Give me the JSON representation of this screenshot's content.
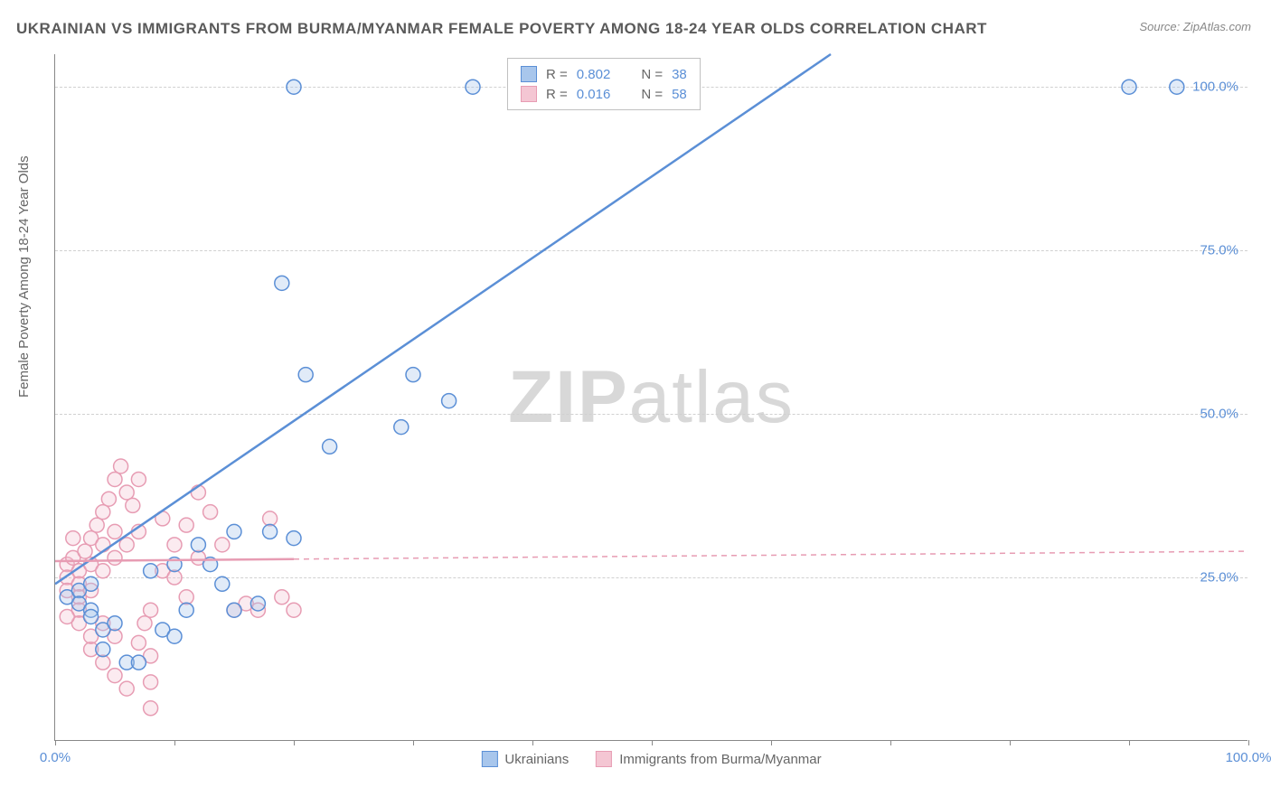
{
  "title": "UKRAINIAN VS IMMIGRANTS FROM BURMA/MYANMAR FEMALE POVERTY AMONG 18-24 YEAR OLDS CORRELATION CHART",
  "source": "Source: ZipAtlas.com",
  "y_axis_label": "Female Poverty Among 18-24 Year Olds",
  "watermark_bold": "ZIP",
  "watermark_light": "atlas",
  "chart": {
    "type": "scatter",
    "xlim": [
      0,
      100
    ],
    "ylim": [
      0,
      105
    ],
    "background_color": "#ffffff",
    "grid_color": "#d0d0d0",
    "grid_dash": "4 4",
    "x_ticks": [
      0,
      10,
      20,
      30,
      40,
      50,
      60,
      70,
      80,
      90,
      100
    ],
    "x_tick_labels": {
      "0": "0.0%",
      "100": "100.0%"
    },
    "y_ticks": [
      25,
      50,
      75,
      100
    ],
    "y_tick_labels": {
      "25": "25.0%",
      "50": "50.0%",
      "75": "75.0%",
      "100": "100.0%"
    },
    "tick_fontsize": 15,
    "tick_color": "#5b8fd6",
    "axis_label_fontsize": 15,
    "axis_label_color": "#666666",
    "marker_radius": 8,
    "marker_stroke_width": 1.5,
    "marker_fill_opacity": 0.35,
    "regression_line_width": 2.5,
    "series": [
      {
        "name": "Ukrainians",
        "color_stroke": "#5b8fd6",
        "color_fill": "#a8c6ec",
        "R": "0.802",
        "N": "38",
        "regression": {
          "x1": 0,
          "y1": 24,
          "x2": 65,
          "y2": 105,
          "dash": null,
          "solid_until_x": 65
        },
        "points": [
          [
            1,
            22
          ],
          [
            2,
            23
          ],
          [
            2,
            21
          ],
          [
            3,
            20
          ],
          [
            3,
            24
          ],
          [
            4,
            17
          ],
          [
            5,
            18
          ],
          [
            4,
            14
          ],
          [
            6,
            12
          ],
          [
            7,
            12
          ],
          [
            9,
            17
          ],
          [
            10,
            16
          ],
          [
            11,
            20
          ],
          [
            10,
            27
          ],
          [
            12,
            30
          ],
          [
            13,
            27
          ],
          [
            15,
            32
          ],
          [
            15,
            20
          ],
          [
            17,
            21
          ],
          [
            18,
            32
          ],
          [
            20,
            31
          ],
          [
            19,
            70
          ],
          [
            21,
            56
          ],
          [
            23,
            45
          ],
          [
            29,
            48
          ],
          [
            30,
            56
          ],
          [
            33,
            52
          ],
          [
            20,
            100
          ],
          [
            35,
            100
          ],
          [
            40,
            100
          ],
          [
            47,
            100
          ],
          [
            48,
            100
          ],
          [
            50,
            100
          ],
          [
            90,
            100
          ],
          [
            94,
            100
          ],
          [
            14,
            24
          ],
          [
            8,
            26
          ],
          [
            3,
            19
          ]
        ]
      },
      {
        "name": "Immigrants from Burma/Myanmar",
        "color_stroke": "#e79cb3",
        "color_fill": "#f4c6d3",
        "R": "0.016",
        "N": "58",
        "regression": {
          "x1": 0,
          "y1": 27.5,
          "x2": 100,
          "y2": 29,
          "dash": "6 5",
          "solid_until_x": 20
        },
        "points": [
          [
            1,
            27
          ],
          [
            1,
            25
          ],
          [
            1,
            23
          ],
          [
            1.5,
            28
          ],
          [
            2,
            26
          ],
          [
            2,
            24
          ],
          [
            2,
            22
          ],
          [
            2,
            20
          ],
          [
            2.5,
            29
          ],
          [
            3,
            31
          ],
          [
            3,
            27
          ],
          [
            3,
            23
          ],
          [
            3.5,
            33
          ],
          [
            4,
            35
          ],
          [
            4,
            30
          ],
          [
            4,
            26
          ],
          [
            4.5,
            37
          ],
          [
            5,
            40
          ],
          [
            5,
            32
          ],
          [
            5,
            28
          ],
          [
            5.5,
            42
          ],
          [
            6,
            38
          ],
          [
            6,
            30
          ],
          [
            6.5,
            36
          ],
          [
            7,
            40
          ],
          [
            7,
            32
          ],
          [
            7,
            15
          ],
          [
            7.5,
            18
          ],
          [
            8,
            20
          ],
          [
            8,
            13
          ],
          [
            8,
            9
          ],
          [
            4,
            12
          ],
          [
            5,
            10
          ],
          [
            6,
            8
          ],
          [
            3,
            14
          ],
          [
            9,
            26
          ],
          [
            9,
            34
          ],
          [
            10,
            30
          ],
          [
            10,
            25
          ],
          [
            11,
            33
          ],
          [
            11,
            22
          ],
          [
            12,
            38
          ],
          [
            12,
            28
          ],
          [
            13,
            35
          ],
          [
            14,
            30
          ],
          [
            15,
            20
          ],
          [
            16,
            21
          ],
          [
            17,
            20
          ],
          [
            18,
            34
          ],
          [
            19,
            22
          ],
          [
            20,
            20
          ],
          [
            8,
            5
          ],
          [
            5,
            16
          ],
          [
            4,
            18
          ],
          [
            3,
            16
          ],
          [
            2,
            18
          ],
          [
            1,
            19
          ],
          [
            1.5,
            31
          ]
        ]
      }
    ]
  },
  "stats_box": {
    "swatch_size": 18,
    "rows": [
      {
        "color_stroke": "#5b8fd6",
        "color_fill": "#a8c6ec",
        "R_label": "R =",
        "R": "0.802",
        "N_label": "N =",
        "N": "38"
      },
      {
        "color_stroke": "#e79cb3",
        "color_fill": "#f4c6d3",
        "R_label": "R =",
        "R": "0.016",
        "N_label": "N =",
        "N": "58"
      }
    ]
  },
  "bottom_legend": {
    "items": [
      {
        "color_stroke": "#5b8fd6",
        "color_fill": "#a8c6ec",
        "label": "Ukrainians"
      },
      {
        "color_stroke": "#e79cb3",
        "color_fill": "#f4c6d3",
        "label": "Immigrants from Burma/Myanmar"
      }
    ]
  }
}
